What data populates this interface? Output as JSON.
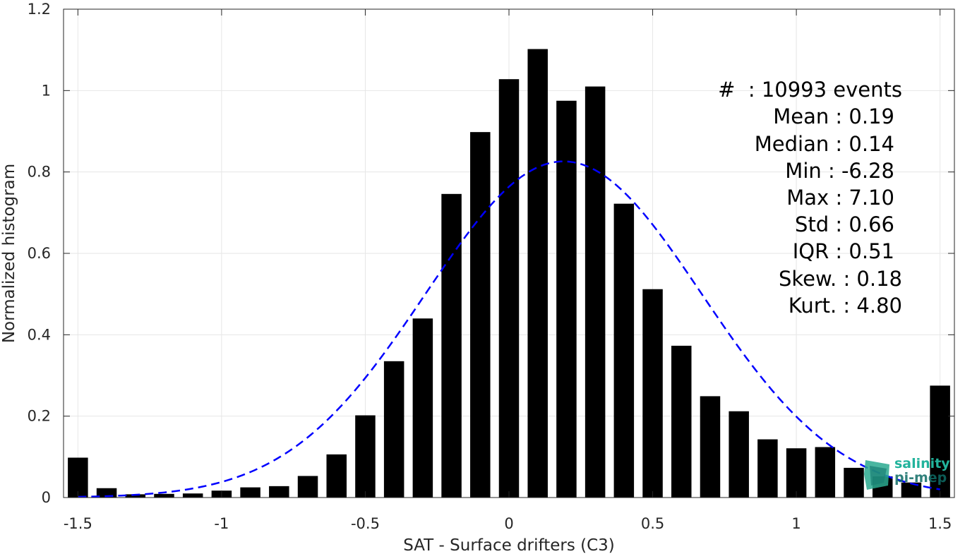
{
  "chart_data": {
    "type": "bar",
    "xlabel": "SAT - Surface drifters (C3)",
    "ylabel": "Normalized histogram",
    "xlim": [
      -1.55,
      1.55
    ],
    "ylim": [
      0,
      1.2
    ],
    "x_ticks": [
      "-1.5",
      "-1",
      "-0.5",
      "0",
      "0.5",
      "1",
      "1.5"
    ],
    "x_tick_values": [
      -1.5,
      -1,
      -0.5,
      0,
      0.5,
      1,
      1.5
    ],
    "y_ticks": [
      "0",
      "0.2",
      "0.4",
      "0.6",
      "0.8",
      "1",
      "1.2"
    ],
    "y_tick_values": [
      0,
      0.2,
      0.4,
      0.6,
      0.8,
      1,
      1.2
    ],
    "grid": true,
    "bar_color": "#000000",
    "x": [
      -1.5,
      -1.4,
      -1.3,
      -1.2,
      -1.1,
      -1.0,
      -0.9,
      -0.8,
      -0.7,
      -0.6,
      -0.5,
      -0.4,
      -0.3,
      -0.2,
      -0.1,
      0.0,
      0.1,
      0.2,
      0.3,
      0.4,
      0.5,
      0.6,
      0.7,
      0.8,
      0.9,
      1.0,
      1.1,
      1.2,
      1.3,
      1.4,
      1.5
    ],
    "values": [
      0.098,
      0.023,
      0.008,
      0.009,
      0.01,
      0.017,
      0.025,
      0.028,
      0.053,
      0.106,
      0.202,
      0.335,
      0.44,
      0.746,
      0.898,
      1.028,
      1.102,
      0.975,
      1.01,
      0.722,
      0.512,
      0.373,
      0.249,
      0.212,
      0.143,
      0.121,
      0.124,
      0.073,
      0.052,
      0.037,
      0.275
    ],
    "fit_curve": {
      "style": "dashed",
      "color": "#0000ff",
      "mean": 0.19,
      "peak": 0.826,
      "sigma": 0.48
    },
    "stats": [
      "#  : 10993 events",
      "Mean : 0.19",
      "Median : 0.14",
      "Min : -6.28",
      "Max : 7.10",
      "Std : 0.66",
      "IQR : 0.51",
      "Skew. : 0.18",
      "Kurt. : 4.80"
    ],
    "watermark": [
      "salinity",
      "pi-mep"
    ]
  }
}
